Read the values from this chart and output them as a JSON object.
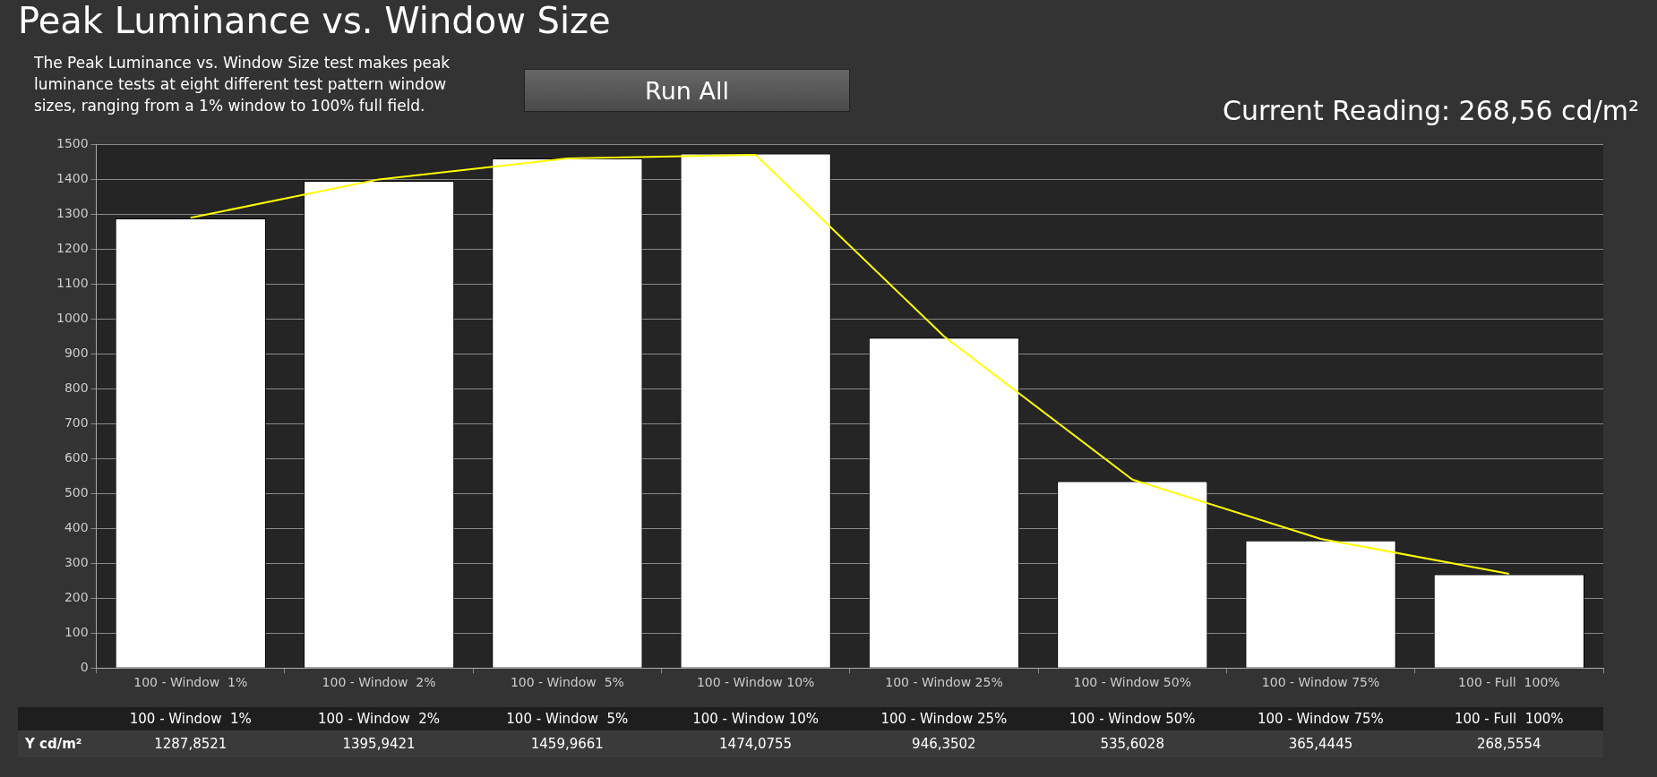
{
  "chart_data": {
    "type": "bar",
    "title": "Peak Luminance vs. Window Size",
    "subtitle": "The Peak Luminance vs. Window Size test makes peak luminance tests at eight different test pattern window sizes, ranging from a 1% window to 100% full field.",
    "annotations": [
      "Run All",
      "Current Reading: 268,56 cd/m²"
    ],
    "categories": [
      "100 - Window  1%",
      "100 - Window  2%",
      "100 - Window  5%",
      "100 - Window 10%",
      "100 - Window 25%",
      "100 - Window 50%",
      "100 - Window 75%",
      "100 - Full  100%"
    ],
    "series": [
      {
        "name": "Y cd/m²",
        "color": "#ffffff",
        "values": [
          1287.8521,
          1395.9421,
          1459.9661,
          1474.0755,
          946.3502,
          535.6028,
          365.4445,
          268.5554
        ],
        "value_labels": [
          "1287,8521",
          "1395,9421",
          "1459,9661",
          "1474,0755",
          "946,3502",
          "535,6028",
          "365,4445",
          "268,5554"
        ]
      },
      {
        "type": "line",
        "color": "#ffff00",
        "values": [
          1290,
          1400,
          1460,
          1470,
          950,
          540,
          370,
          270
        ]
      }
    ],
    "ylim": [
      0,
      1500
    ],
    "yticks": [
      0,
      100,
      200,
      300,
      400,
      500,
      600,
      700,
      800,
      900,
      1000,
      1100,
      1200,
      1300,
      1400,
      1500
    ],
    "grid": "y",
    "marker": "none"
  }
}
